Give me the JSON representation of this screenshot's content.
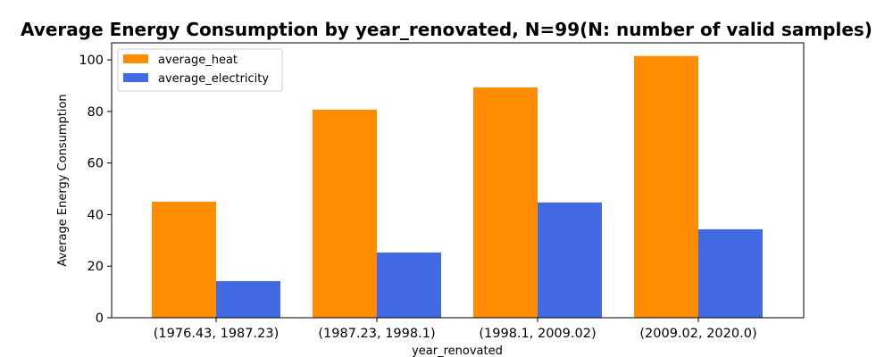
{
  "chart_data": {
    "type": "bar",
    "title": "Average Energy Consumption by year_renovated, N=99(N: number of valid samples)",
    "xlabel": "year_renovated",
    "ylabel": "Average Energy Consumption",
    "categories": [
      "(1976.43, 1987.23)",
      "(1987.23, 1998.1)",
      "(1998.1, 2009.02)",
      "(2009.02, 2020.0)"
    ],
    "series": [
      {
        "name": "average_heat",
        "color": "#ff8c00",
        "values": [
          45.0,
          80.7,
          89.3,
          101.5
        ]
      },
      {
        "name": "average_electricity",
        "color": "#4169e1",
        "values": [
          14.2,
          25.3,
          44.7,
          34.3
        ]
      }
    ],
    "ylim": [
      0,
      106.6
    ],
    "yticks": [
      0,
      20,
      40,
      60,
      80,
      100
    ],
    "grid": false,
    "legend": "upper-left"
  }
}
